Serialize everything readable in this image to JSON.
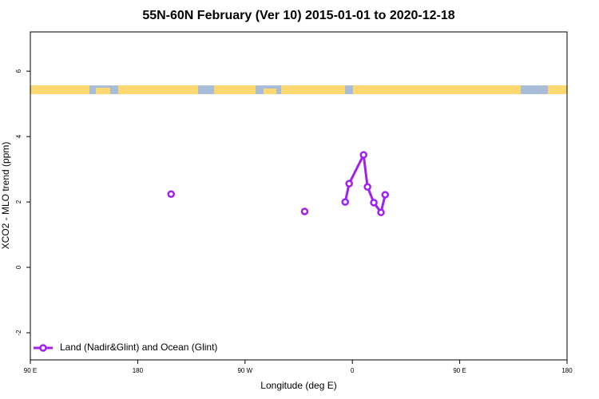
{
  "chart_data": {
    "type": "line",
    "title": "55N-60N February (Ver 10)   2015-01-01 to 2020-12-18",
    "x_label": "Longitude (deg E)",
    "y_label": "XCO2 - MLO trend (ppm)",
    "xlim": [
      -270,
      180
    ],
    "xticks": [
      {
        "value": -270,
        "label": "90 E"
      },
      {
        "value": -180,
        "label": "180"
      },
      {
        "value": -90,
        "label": "90 W"
      },
      0,
      {
        "value": 90,
        "label": "90 E"
      },
      180
    ],
    "ylim": [
      -2.83,
      7.2
    ],
    "yticks": [
      -2,
      0,
      2,
      4,
      6
    ],
    "x": [
      -152,
      -100,
      -40,
      -20,
      -6,
      -2.7,
      9.4,
      12.7,
      18,
      24,
      27.5
    ],
    "series": [
      {
        "name": "Land (Nadir&Glint) and Ocean (Glint)",
        "color": "#a020f0",
        "values": [
          2.24,
          null,
          1.71,
          null,
          2.0,
          2.56,
          3.44,
          2.46,
          1.98,
          1.68,
          2.22
        ]
      }
    ],
    "legend": "bottom-left"
  }
}
